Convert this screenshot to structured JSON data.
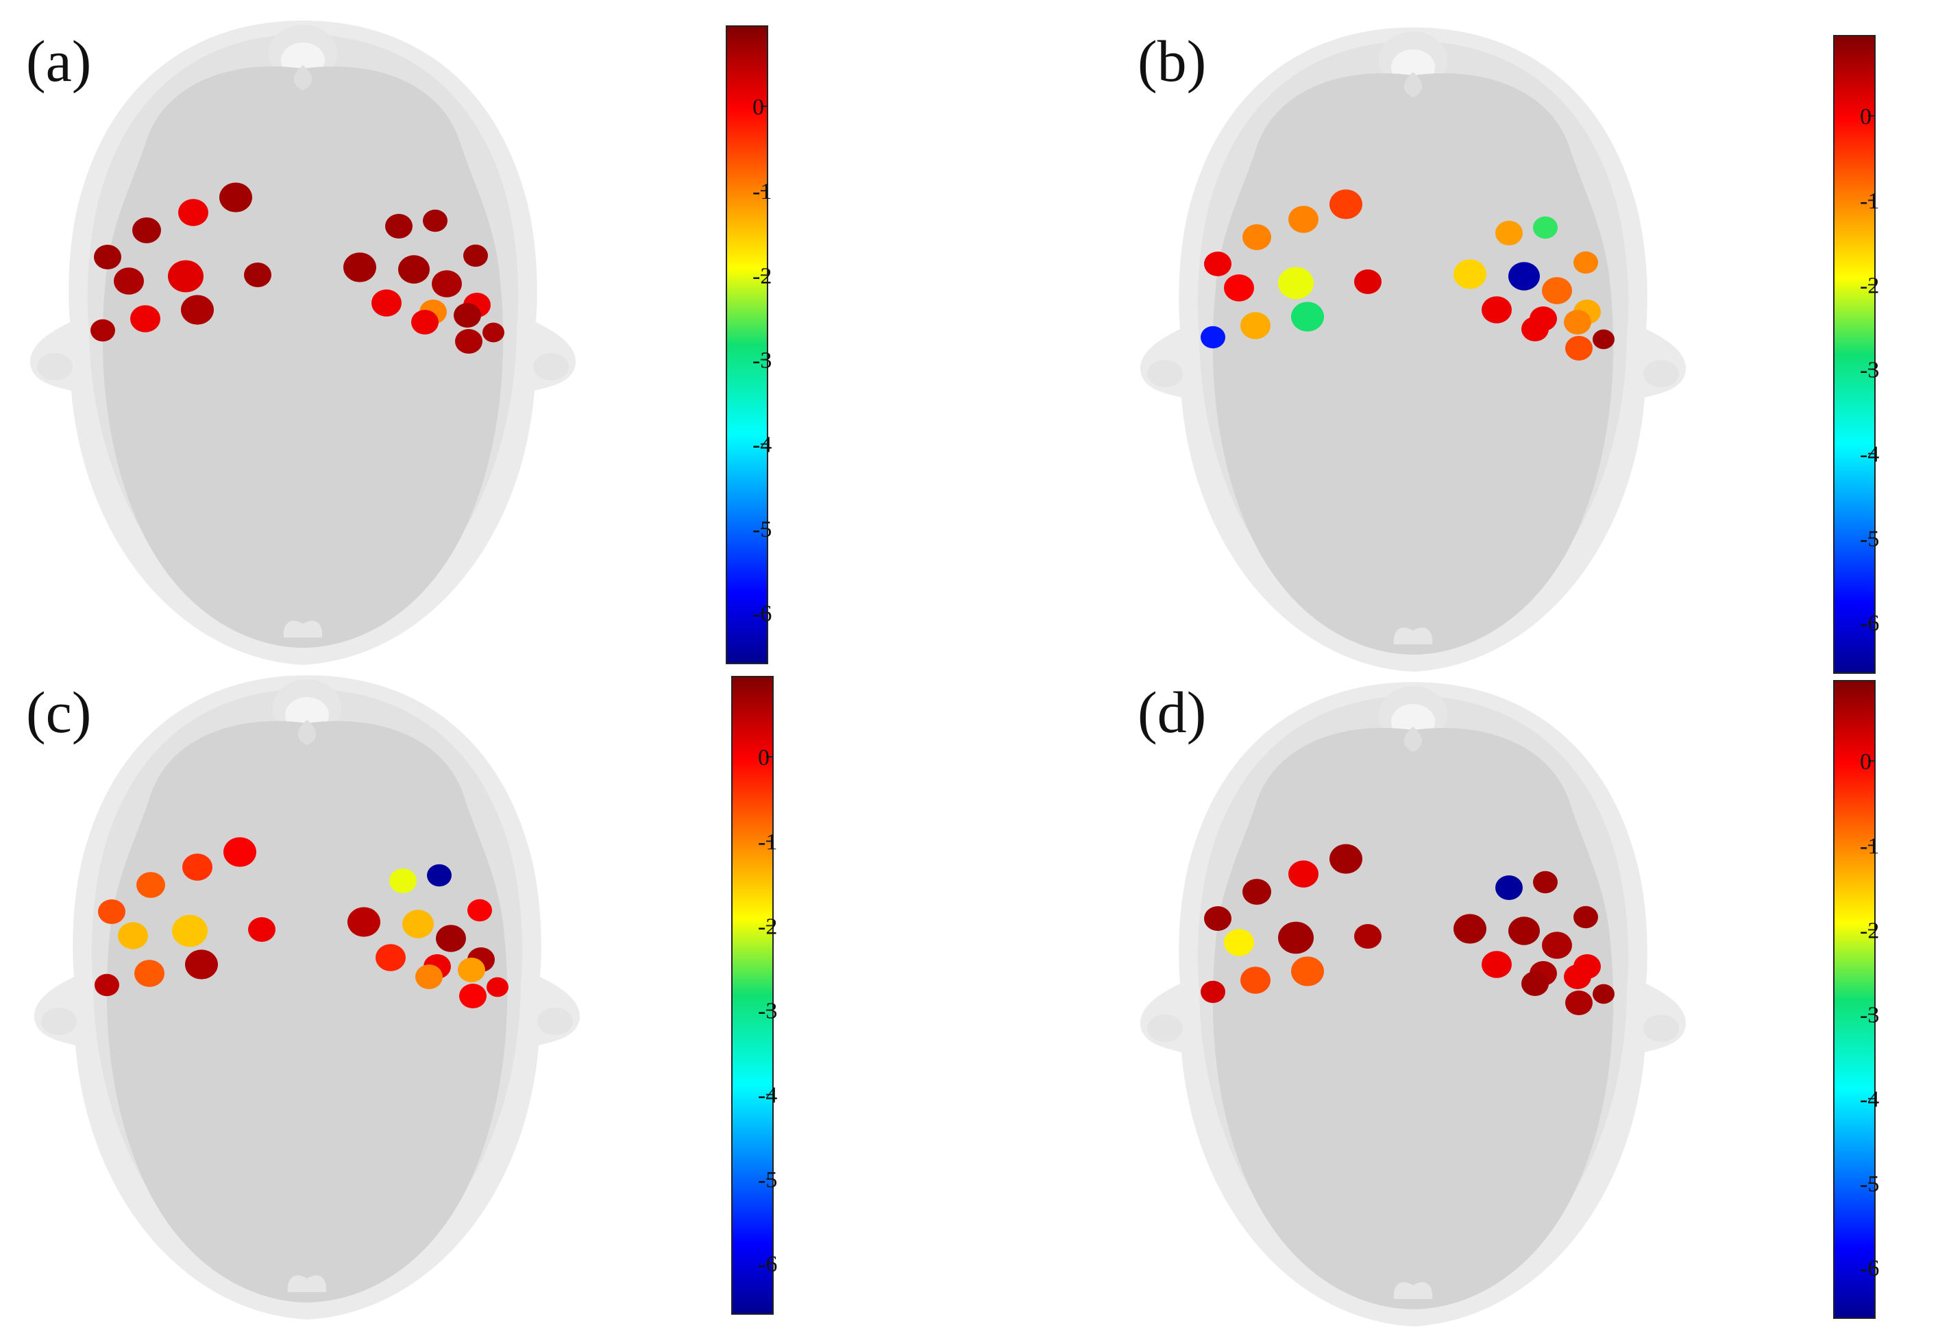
{
  "figure": {
    "panels": [
      {
        "label": "(a)",
        "colorbar": {
          "ticks": [
            "0",
            "-1",
            "-2",
            "-3",
            "-4",
            "-5",
            "-6"
          ]
        },
        "spots": [
          {
            "value": 0.7
          },
          {
            "value": 0.7
          },
          {
            "value": 0.1
          },
          {
            "value": 0.7
          },
          {
            "value": 0.6
          },
          {
            "value": 0.2
          },
          {
            "value": 0.7
          },
          {
            "value": 0.6
          },
          {
            "value": 0.1
          },
          {
            "value": 0.6
          },
          {
            "value": 0.7
          },
          {
            "value": 0.7
          },
          {
            "value": 0.7
          },
          {
            "value": 0.7
          },
          {
            "value": 0.7
          },
          {
            "value": 0.6
          },
          {
            "value": 0.1
          },
          {
            "value": 0.6
          },
          {
            "value": 0.6
          },
          {
            "value": -1.0
          },
          {
            "value": 0.1
          },
          {
            "value": 0.1
          },
          {
            "value": 0.7
          }
        ]
      },
      {
        "label": "(b)",
        "colorbar": {
          "ticks": [
            "0",
            "-1",
            "-2",
            "-3",
            "-4",
            "-5",
            "-6"
          ]
        },
        "spots": [
          {
            "value": 0.1
          },
          {
            "value": -1.0
          },
          {
            "value": -1.0
          },
          {
            "value": -0.5
          },
          {
            "value": 0.0
          },
          {
            "value": -2.0
          },
          {
            "value": 0.2
          },
          {
            "value": -5.6
          },
          {
            "value": -1.3
          },
          {
            "value": -2.8
          },
          {
            "value": -1.2
          },
          {
            "value": -2.7
          },
          {
            "value": -1.0
          },
          {
            "value": -1.6
          },
          {
            "value": -6.4
          },
          {
            "value": -0.8
          },
          {
            "value": -1.3
          },
          {
            "value": 0.7
          },
          {
            "value": -0.6
          },
          {
            "value": 0.1
          },
          {
            "value": 0.1
          },
          {
            "value": 0.1
          },
          {
            "value": -1.0
          }
        ]
      },
      {
        "label": "(c)",
        "colorbar": {
          "ticks": [
            "0",
            "-1",
            "-2",
            "-3",
            "-4",
            "-5",
            "-6"
          ]
        },
        "spots": [
          {
            "value": -0.6
          },
          {
            "value": -0.7
          },
          {
            "value": -0.4
          },
          {
            "value": 0.0
          },
          {
            "value": -1.4
          },
          {
            "value": -1.5
          },
          {
            "value": 0.1
          },
          {
            "value": 0.5
          },
          {
            "value": -0.7
          },
          {
            "value": 0.6
          },
          {
            "value": -2.0
          },
          {
            "value": -6.5
          },
          {
            "value": 0.0
          },
          {
            "value": 0.5
          },
          {
            "value": -1.4
          },
          {
            "value": 0.7
          },
          {
            "value": 0.6
          },
          {
            "value": 0.1
          },
          {
            "value": 0.0
          },
          {
            "value": 0.1
          },
          {
            "value": -0.3
          },
          {
            "value": -1.0
          },
          {
            "value": -1.2
          }
        ]
      },
      {
        "label": "(d)",
        "colorbar": {
          "ticks": [
            "0",
            "-1",
            "-2",
            "-3",
            "-4",
            "-5",
            "-6"
          ]
        },
        "spots": [
          {
            "value": 0.7
          },
          {
            "value": 0.7
          },
          {
            "value": 0.1
          },
          {
            "value": 0.7
          },
          {
            "value": -1.8
          },
          {
            "value": 0.7
          },
          {
            "value": 0.6
          },
          {
            "value": 0.3
          },
          {
            "value": -0.6
          },
          {
            "value": -0.7
          },
          {
            "value": -6.5
          },
          {
            "value": 0.7
          },
          {
            "value": 0.7
          },
          {
            "value": 0.7
          },
          {
            "value": 0.7
          },
          {
            "value": 0.6
          },
          {
            "value": 0.1
          },
          {
            "value": 0.7
          },
          {
            "value": 0.6
          },
          {
            "value": 0.6
          },
          {
            "value": 0.1
          },
          {
            "value": 0.7
          },
          {
            "value": 0.1
          }
        ]
      }
    ]
  }
}
